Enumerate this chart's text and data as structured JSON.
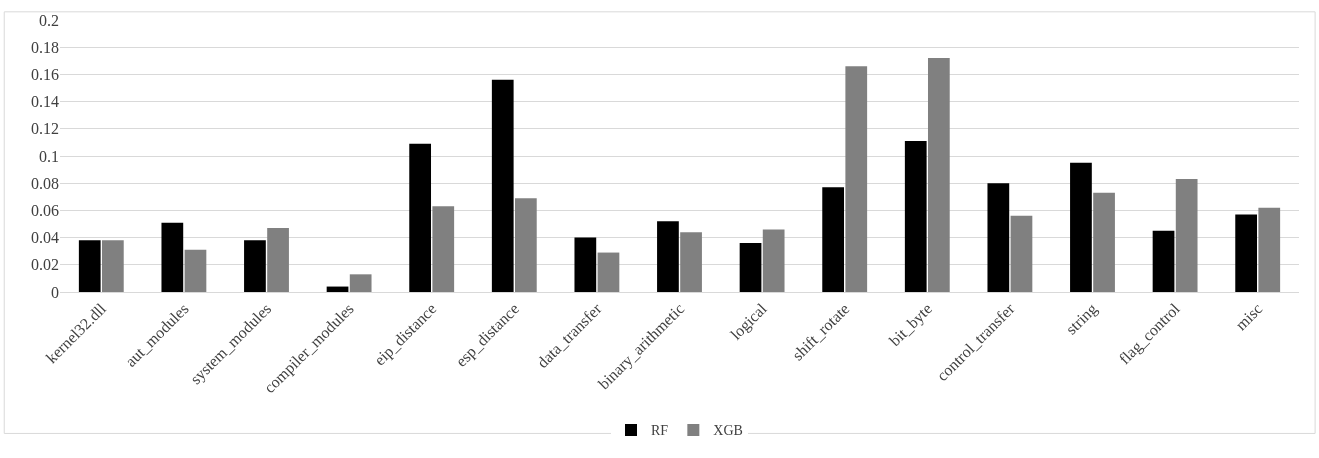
{
  "chart_data": {
    "type": "bar",
    "categories": [
      "kernel32.dll",
      "aut_modules",
      "system_modules",
      "compiler_modules",
      "eip_distance",
      "esp_distance",
      "data_transfer",
      "binary_arithmetic",
      "logical",
      "shift_rotate",
      "bit_byte",
      "control_transfer",
      "string",
      "flag_control",
      "misc"
    ],
    "series": [
      {
        "name": "RF",
        "color": "#000000",
        "values": [
          0.038,
          0.051,
          0.038,
          0.004,
          0.109,
          0.156,
          0.04,
          0.052,
          0.036,
          0.077,
          0.111,
          0.08,
          0.095,
          0.045,
          0.057
        ]
      },
      {
        "name": "XGB",
        "color": "#808080",
        "values": [
          0.038,
          0.031,
          0.047,
          0.013,
          0.063,
          0.069,
          0.029,
          0.044,
          0.046,
          0.166,
          0.172,
          0.056,
          0.073,
          0.083,
          0.062
        ]
      }
    ],
    "ylim": [
      0,
      0.2
    ],
    "yticks": [
      0,
      0.02,
      0.04,
      0.06,
      0.08,
      0.1,
      0.12,
      0.14,
      0.16,
      0.18,
      0.2
    ],
    "grid": "y",
    "legend": "bottom"
  }
}
